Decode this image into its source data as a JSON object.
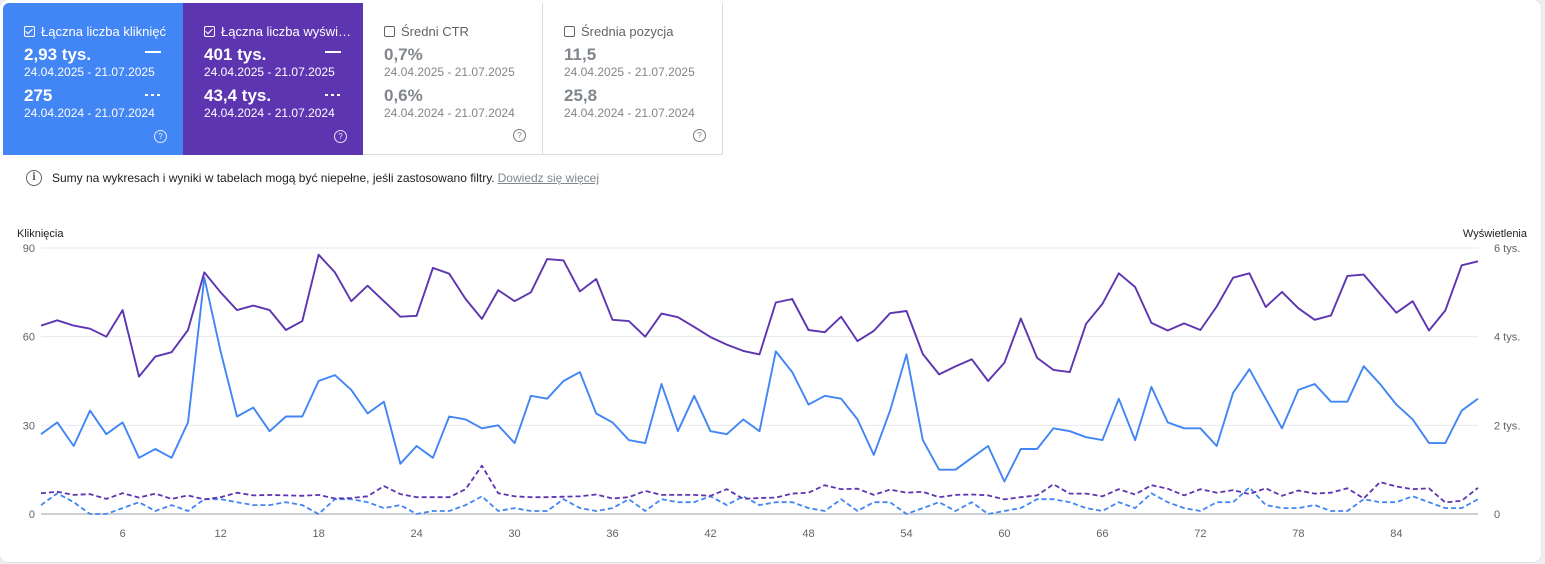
{
  "metrics": [
    {
      "label": "Łączna liczba kliknięć",
      "value": "2,93 tys.",
      "date": "24.04.2025 - 21.07.2025",
      "compare_value": "275",
      "compare_date": "24.04.2024 - 21.07.2024",
      "checked": true
    },
    {
      "label": "Łączna liczba wyświ…",
      "value": "401 tys.",
      "date": "24.04.2025 - 21.07.2025",
      "compare_value": "43,4 tys.",
      "compare_date": "24.04.2024 - 21.07.2024",
      "checked": true
    },
    {
      "label": "Średni CTR",
      "value": "0,7%",
      "date": "24.04.2025 - 21.07.2025",
      "compare_value": "0,6%",
      "compare_date": "24.04.2024 - 21.07.2024",
      "checked": false
    },
    {
      "label": "Średnia pozycja",
      "value": "11,5",
      "date": "24.04.2025 - 21.07.2025",
      "compare_value": "25,8",
      "compare_date": "24.04.2024 - 21.07.2024",
      "checked": false
    }
  ],
  "help_icon": "?",
  "info": {
    "text": "Sumy na wykresach i wyniki w tabelach mogą być niepełne, jeśli zastosowano filtry.",
    "link": "Dowiedz się więcej",
    "icon": "info-icon"
  },
  "colors": {
    "clicks": "#4285f4",
    "impressions": "#5e35b1",
    "grid": "#e8eaed"
  },
  "chart_data": {
    "type": "line",
    "y_left_title": "Kliknięcia",
    "y_right_title": "Wyświetlenia",
    "y_left_range": [
      0,
      90
    ],
    "y_left_ticks": [
      "0",
      "30",
      "60",
      "90"
    ],
    "y_right_range": [
      0,
      6000
    ],
    "y_right_ticks": [
      "0",
      "2 tys.",
      "4 tys.",
      "6 tys."
    ],
    "x_range": [
      1,
      89
    ],
    "x_ticks": [
      6,
      12,
      18,
      24,
      30,
      36,
      42,
      48,
      54,
      60,
      66,
      72,
      78,
      84
    ],
    "grid": true,
    "series": [
      {
        "name": "Łączna liczba kliknięć",
        "axis": "left",
        "style": "solid",
        "color": "#4285f4",
        "values": [
          27,
          31,
          23,
          35,
          27,
          31,
          19,
          22,
          19,
          31,
          80,
          55,
          33,
          36,
          28,
          33,
          33,
          45,
          47,
          42,
          34,
          38,
          17,
          23,
          19,
          33,
          32,
          29,
          30,
          24,
          40,
          39,
          45,
          48,
          34,
          31,
          25,
          24,
          44,
          28,
          40,
          28,
          27,
          32,
          28,
          55,
          48,
          37,
          40,
          39,
          32,
          20,
          35,
          54,
          25,
          15,
          15,
          19,
          23,
          11,
          22,
          22,
          29,
          28,
          26,
          25,
          39,
          25,
          43,
          31,
          29,
          29,
          23,
          41,
          49,
          39,
          29,
          42,
          44,
          38,
          38,
          50,
          44,
          37,
          32,
          24,
          24,
          35,
          39
        ]
      },
      {
        "name": "Łączna liczba wyświetleń",
        "axis": "right",
        "style": "solid",
        "color": "#5e35b1",
        "values": [
          4250,
          4370,
          4250,
          4180,
          4000,
          4600,
          3100,
          3550,
          3650,
          4150,
          5450,
          5000,
          4600,
          4700,
          4600,
          4150,
          4350,
          5850,
          5450,
          4800,
          5150,
          4800,
          4450,
          4470,
          5550,
          5420,
          4850,
          4400,
          5050,
          4800,
          5000,
          5750,
          5720,
          5020,
          5300,
          4380,
          4350,
          4000,
          4520,
          4440,
          4220,
          3990,
          3820,
          3680,
          3600,
          4770,
          4850,
          4150,
          4100,
          4450,
          3900,
          4130,
          4530,
          4580,
          3610,
          3150,
          3330,
          3490,
          3000,
          3410,
          4410,
          3520,
          3250,
          3200,
          4290,
          4740,
          5430,
          5120,
          4310,
          4140,
          4300,
          4150,
          4680,
          5330,
          5430,
          4670,
          5010,
          4640,
          4380,
          4480,
          5370,
          5400,
          4970,
          4540,
          4800,
          4140,
          4590,
          5610,
          5700
        ]
      },
      {
        "name": "Kliknięcia (24.04.2024 - 21.07.2024)",
        "axis": "left",
        "style": "dashed",
        "color": "#4285f4",
        "values": [
          3,
          7,
          4,
          0,
          0,
          2,
          4,
          1,
          3,
          1,
          5,
          5,
          4,
          3,
          3,
          4,
          3,
          0,
          5,
          5,
          4,
          2,
          3,
          0,
          1,
          1,
          3,
          6,
          1,
          2,
          1,
          1,
          5,
          2,
          1,
          2,
          5,
          1,
          5,
          4,
          4,
          6,
          3,
          6,
          3,
          4,
          4,
          2,
          1,
          5,
          1,
          4,
          4,
          0,
          2,
          4,
          1,
          4,
          0,
          1,
          2,
          5,
          5,
          4,
          2,
          1,
          4,
          2,
          7,
          4,
          2,
          1,
          4,
          4,
          9,
          3,
          2,
          2,
          3,
          1,
          1,
          5,
          4,
          4,
          6,
          4,
          2,
          2,
          5
        ]
      },
      {
        "name": "Wyświetlenia (24.04.2024 - 21.07.2024)",
        "axis": "right",
        "style": "dashed",
        "color": "#5e35b1",
        "values": [
          470,
          500,
          430,
          450,
          340,
          470,
          370,
          460,
          340,
          420,
          330,
          380,
          480,
          420,
          430,
          420,
          410,
          430,
          350,
          360,
          400,
          630,
          450,
          380,
          380,
          380,
          560,
          1090,
          470,
          400,
          380,
          380,
          390,
          400,
          440,
          350,
          380,
          520,
          430,
          430,
          430,
          410,
          560,
          340,
          360,
          370,
          460,
          480,
          650,
          560,
          570,
          430,
          550,
          480,
          500,
          380,
          430,
          440,
          420,
          330,
          380,
          420,
          670,
          460,
          460,
          400,
          560,
          440,
          650,
          570,
          420,
          560,
          480,
          540,
          450,
          580,
          410,
          530,
          460,
          480,
          580,
          350,
          720,
          620,
          560,
          580,
          260,
          300,
          590
        ]
      }
    ]
  }
}
